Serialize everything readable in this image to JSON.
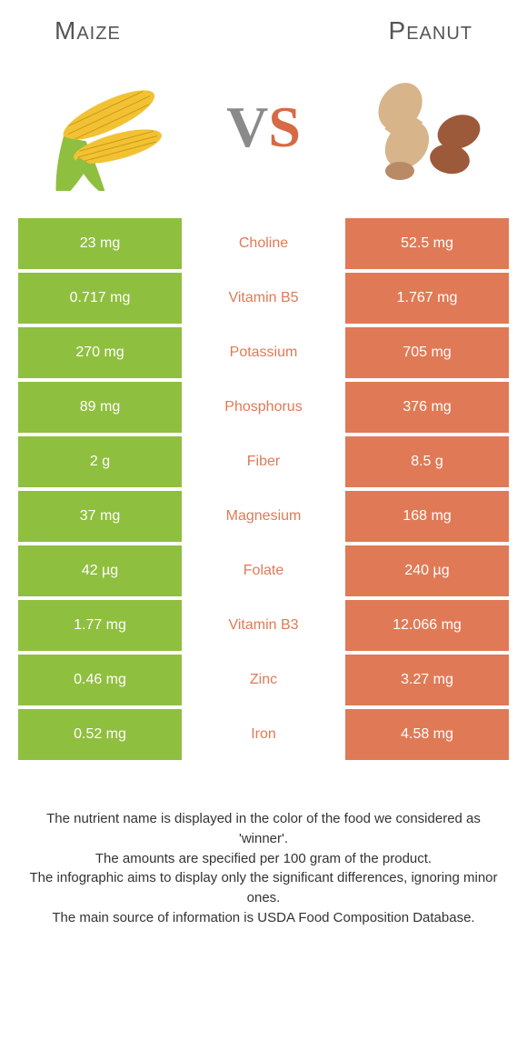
{
  "foods": {
    "left": {
      "name": "Maize",
      "color": "#8fbf3f"
    },
    "right": {
      "name": "Peanut",
      "color": "#e07a56"
    }
  },
  "vs_label": {
    "v": "V",
    "s": "S"
  },
  "nutrient_label_color_default": "#555555",
  "rows": [
    {
      "nutrient": "Choline",
      "left": "23 mg",
      "right": "52.5 mg",
      "winner": "right"
    },
    {
      "nutrient": "Vitamin B5",
      "left": "0.717 mg",
      "right": "1.767 mg",
      "winner": "right"
    },
    {
      "nutrient": "Potassium",
      "left": "270 mg",
      "right": "705 mg",
      "winner": "right"
    },
    {
      "nutrient": "Phosphorus",
      "left": "89 mg",
      "right": "376 mg",
      "winner": "right"
    },
    {
      "nutrient": "Fiber",
      "left": "2 g",
      "right": "8.5 g",
      "winner": "right"
    },
    {
      "nutrient": "Magnesium",
      "left": "37 mg",
      "right": "168 mg",
      "winner": "right"
    },
    {
      "nutrient": "Folate",
      "left": "42 µg",
      "right": "240 µg",
      "winner": "right"
    },
    {
      "nutrient": "Vitamin B3",
      "left": "1.77 mg",
      "right": "12.066 mg",
      "winner": "right"
    },
    {
      "nutrient": "Zinc",
      "left": "0.46 mg",
      "right": "3.27 mg",
      "winner": "right"
    },
    {
      "nutrient": "Iron",
      "left": "0.52 mg",
      "right": "4.58 mg",
      "winner": "right"
    }
  ],
  "footer": {
    "line1": "The nutrient name is displayed in the color of the food we considered as 'winner'.",
    "line2": "The amounts are specified per 100 gram of the product.",
    "line3": "The infographic aims to display only the significant differences, ignoring minor ones.",
    "line4": "The main source of information is USDA Food Composition Database."
  }
}
